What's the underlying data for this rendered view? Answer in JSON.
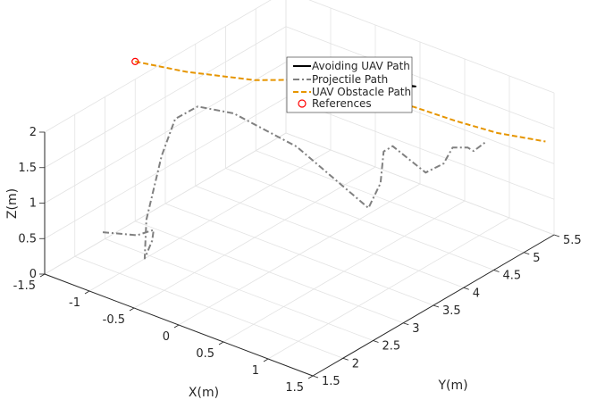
{
  "chart_data": {
    "type": "line",
    "projection": "3d",
    "grid": true,
    "legend_position": "top-center",
    "axes": {
      "x": {
        "label": "X(m)",
        "range": [
          -1.5,
          1.5
        ],
        "ticks": [
          "-1.5",
          "-1",
          "-0.5",
          "0",
          "0.5",
          "1",
          "1.5"
        ]
      },
      "y": {
        "label": "Y(m)",
        "range": [
          1.5,
          5.5
        ],
        "ticks": [
          "1.5",
          "2",
          "2.5",
          "3",
          "3.5",
          "4",
          "4.5",
          "5",
          "5.5"
        ]
      },
      "z": {
        "label": "Z(m)",
        "range": [
          0,
          2
        ],
        "ticks": [
          "0",
          "0.5",
          "1",
          "1.5",
          "2"
        ]
      }
    },
    "series": [
      {
        "name": "Avoiding UAV Path",
        "color": "#000000",
        "style": "solid",
        "points": [
          [
            0.0,
            4.7,
            1.45
          ],
          [
            0.0,
            4.9,
            1.5
          ],
          [
            -0.1,
            5.0,
            1.55
          ],
          [
            -0.15,
            5.05,
            1.6
          ],
          [
            -0.15,
            5.15,
            1.55
          ],
          [
            -0.1,
            5.35,
            1.4
          ],
          [
            -0.05,
            5.5,
            1.35
          ],
          [
            -0.15,
            5.1,
            1.58
          ],
          [
            0.0,
            4.7,
            1.45
          ]
        ]
      },
      {
        "name": "Projectile Path",
        "color": "#808080",
        "style": "dash-dot",
        "points": [
          [
            -0.85,
            1.5,
            0.9
          ],
          [
            -0.5,
            1.55,
            1.0
          ],
          [
            -0.45,
            1.75,
            1.0
          ],
          [
            -0.5,
            1.8,
            0.8
          ],
          [
            -0.55,
            1.75,
            0.55
          ],
          [
            -0.7,
            2.0,
            0.9
          ],
          [
            -0.8,
            2.4,
            1.55
          ],
          [
            -0.85,
            2.7,
            1.9
          ],
          [
            -0.8,
            3.0,
            1.95
          ],
          [
            -0.6,
            3.3,
            1.8
          ],
          [
            -0.2,
            3.75,
            1.3
          ],
          [
            0.3,
            4.2,
            0.45
          ],
          [
            0.3,
            4.4,
            0.7
          ],
          [
            0.2,
            4.6,
            1.0
          ],
          [
            0.2,
            4.75,
            1.0
          ],
          [
            0.4,
            5.0,
            0.6
          ],
          [
            0.5,
            5.15,
            0.7
          ],
          [
            0.5,
            5.3,
            0.85
          ],
          [
            0.6,
            5.4,
            0.85
          ],
          [
            0.6,
            5.5,
            0.75
          ],
          [
            0.7,
            5.55,
            0.9
          ]
        ]
      },
      {
        "name": "UAV Obstacle Path",
        "color": "#e69500",
        "style": "dashed",
        "points": [
          [
            -1.5,
            3.0,
            2.25
          ],
          [
            -1.2,
            3.4,
            2.05
          ],
          [
            -0.8,
            3.95,
            1.85
          ],
          [
            -0.5,
            4.35,
            1.8
          ],
          [
            -0.2,
            4.65,
            1.65
          ],
          [
            0.0,
            4.85,
            1.5
          ],
          [
            0.2,
            5.1,
            1.38
          ],
          [
            0.5,
            5.35,
            1.2
          ],
          [
            0.8,
            5.6,
            1.05
          ],
          [
            1.1,
            5.95,
            0.9
          ]
        ]
      },
      {
        "name": "References",
        "color": "#ff0000",
        "style": "markers",
        "points": [
          [
            -1.5,
            3.0,
            2.25
          ],
          [
            -0.1,
            4.85,
            1.6
          ]
        ]
      }
    ]
  }
}
